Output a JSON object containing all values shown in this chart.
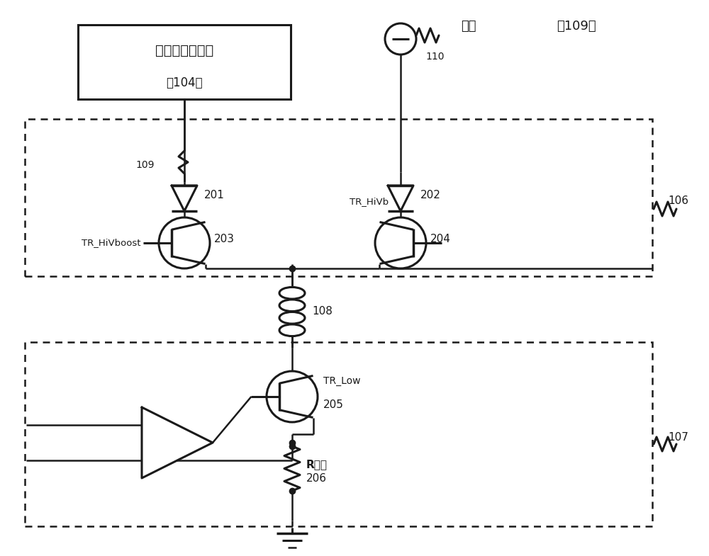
{
  "box104_text1": "高电压生成单元",
  "box104_text2": "（104）",
  "battery_text": "电池",
  "battery_ref": "（109）",
  "label_110": "110",
  "label_109": "109",
  "label_201": "201",
  "label_202": "202",
  "label_tr1": "TR_HiVboost",
  "label_203": "203",
  "label_tr2": "TR_HiVb",
  "label_204": "204",
  "label_108": "108",
  "label_trlow": "TR_Low",
  "label_205": "205",
  "label_rshunt": "R分流",
  "label_206": "206",
  "label_106": "106",
  "label_107": "107"
}
